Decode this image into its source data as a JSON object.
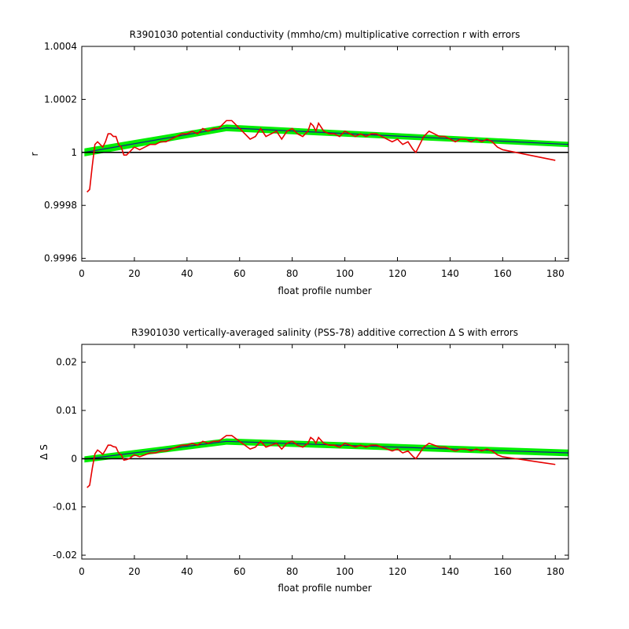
{
  "colors": {
    "band": "#00ee00",
    "fit": "#1a1a8c",
    "data": "#e60000",
    "axis": "#000000"
  },
  "chart_data": [
    {
      "type": "line",
      "title": "R3901030 potential conductivity (mmho/cm) multiplicative correction r with errors",
      "xlabel": "float profile number",
      "ylabel": "r",
      "xlim": [
        0,
        185
      ],
      "ylim": [
        0.99959,
        1.0004
      ],
      "x_ticks": [
        0,
        20,
        40,
        60,
        80,
        100,
        120,
        140,
        160,
        180
      ],
      "y_ticks": [
        0.9996,
        0.9998,
        1,
        1.0002,
        1.0004
      ],
      "y_tick_labels": [
        "0.9996",
        "0.9998",
        "1",
        "1.0002",
        "1.0004"
      ],
      "reference_line": 1,
      "series": [
        {
          "role": "fit_band",
          "x": [
            1,
            55,
            185
          ],
          "upper": [
            1.000015,
            1.000105,
            1.00004
          ],
          "lower": [
            0.999985,
            1.00008,
            1.00002
          ]
        },
        {
          "role": "fit",
          "x": [
            1,
            55,
            185
          ],
          "values": [
            1.0,
            1.000093,
            1.00003
          ]
        },
        {
          "role": "data",
          "x": [
            2,
            3,
            4,
            5,
            6,
            7,
            8,
            9,
            10,
            11,
            12,
            13,
            14,
            15,
            16,
            17,
            18,
            19,
            20,
            22,
            24,
            26,
            28,
            30,
            32,
            34,
            36,
            38,
            40,
            42,
            44,
            46,
            48,
            50,
            52,
            54,
            55,
            56,
            57,
            58,
            59,
            60,
            62,
            64,
            66,
            68,
            70,
            72,
            74,
            76,
            78,
            80,
            82,
            84,
            86,
            87,
            88,
            89,
            90,
            92,
            94,
            96,
            98,
            100,
            102,
            104,
            106,
            108,
            110,
            112,
            114,
            116,
            118,
            120,
            122,
            124,
            126,
            127,
            128,
            130,
            132,
            134,
            136,
            138,
            140,
            142,
            144,
            146,
            148,
            150,
            152,
            154,
            156,
            158,
            160,
            165,
            170,
            175,
            180
          ],
          "values": [
            0.99985,
            0.99986,
            0.99995,
            1.00003,
            1.00004,
            1.00003,
            1.00002,
            1.00004,
            1.00007,
            1.00007,
            1.00006,
            1.00006,
            1.00003,
            1.00002,
            0.99999,
            0.99999,
            1.0,
            1.00001,
            1.00002,
            1.00001,
            1.00002,
            1.00003,
            1.00003,
            1.00004,
            1.00004,
            1.00005,
            1.00006,
            1.00007,
            1.00007,
            1.00008,
            1.00007,
            1.00009,
            1.00008,
            1.00009,
            1.00009,
            1.00011,
            1.00012,
            1.00012,
            1.00012,
            1.00011,
            1.0001,
            1.00009,
            1.00007,
            1.00005,
            1.00006,
            1.00009,
            1.00006,
            1.00007,
            1.00008,
            1.00005,
            1.00008,
            1.00009,
            1.00007,
            1.00006,
            1.00008,
            1.00011,
            1.0001,
            1.00008,
            1.00011,
            1.00008,
            1.00007,
            1.00007,
            1.00006,
            1.00008,
            1.00007,
            1.00006,
            1.00007,
            1.00006,
            1.00007,
            1.00007,
            1.00006,
            1.00005,
            1.00004,
            1.00005,
            1.00003,
            1.00004,
            1.00001,
            1.0,
            1.00002,
            1.00006,
            1.00008,
            1.00007,
            1.00006,
            1.00006,
            1.00005,
            1.00004,
            1.00005,
            1.00005,
            1.00004,
            1.00005,
            1.00004,
            1.00005,
            1.00004,
            1.00002,
            1.00001,
            1.0,
            0.99999,
            0.99998,
            0.99997
          ]
        }
      ]
    },
    {
      "type": "line",
      "title": "R3901030 vertically-averaged salinity (PSS-78) additive correction Δ S with errors",
      "xlabel": "float profile number",
      "ylabel": "Δ S",
      "xlim": [
        0,
        185
      ],
      "ylim": [
        -0.0208,
        0.0237
      ],
      "x_ticks": [
        0,
        20,
        40,
        60,
        80,
        100,
        120,
        140,
        160,
        180
      ],
      "y_ticks": [
        -0.02,
        -0.01,
        0,
        0.01,
        0.02
      ],
      "y_tick_labels": [
        "-0.02",
        "-0.01",
        "0",
        "0.01",
        "0.02"
      ],
      "reference_line": 0,
      "series": [
        {
          "role": "fit_band",
          "x": [
            1,
            55,
            185
          ],
          "upper": [
            0.0005,
            0.0042,
            0.0019
          ],
          "lower": [
            -0.0008,
            0.0029,
            0.0005
          ]
        },
        {
          "role": "fit",
          "x": [
            1,
            55,
            185
          ],
          "values": [
            -0.0001,
            0.0036,
            0.0012
          ]
        },
        {
          "role": "data",
          "x": [
            2,
            3,
            4,
            5,
            6,
            7,
            8,
            9,
            10,
            11,
            12,
            13,
            14,
            15,
            16,
            17,
            18,
            19,
            20,
            22,
            24,
            26,
            28,
            30,
            32,
            34,
            36,
            38,
            40,
            42,
            44,
            46,
            48,
            50,
            52,
            54,
            55,
            56,
            57,
            58,
            59,
            60,
            62,
            64,
            66,
            68,
            70,
            72,
            74,
            76,
            78,
            80,
            82,
            84,
            86,
            87,
            88,
            89,
            90,
            92,
            94,
            96,
            98,
            100,
            102,
            104,
            106,
            108,
            110,
            112,
            114,
            116,
            118,
            120,
            122,
            124,
            126,
            127,
            128,
            130,
            132,
            134,
            136,
            138,
            140,
            142,
            144,
            146,
            148,
            150,
            152,
            154,
            156,
            158,
            160,
            165,
            170,
            175,
            180
          ],
          "values": [
            -0.006,
            -0.0055,
            -0.002,
            0.001,
            0.0018,
            0.0014,
            0.0009,
            0.0018,
            0.0028,
            0.0028,
            0.0025,
            0.0024,
            0.0012,
            0.0008,
            -0.0003,
            -0.0002,
            0.0,
            0.0004,
            0.0008,
            0.0004,
            0.0008,
            0.0012,
            0.0012,
            0.0016,
            0.0016,
            0.002,
            0.0024,
            0.0028,
            0.0028,
            0.0032,
            0.0028,
            0.0036,
            0.0032,
            0.0036,
            0.0036,
            0.0044,
            0.0048,
            0.0048,
            0.0048,
            0.0044,
            0.004,
            0.0036,
            0.0028,
            0.002,
            0.0024,
            0.0036,
            0.0024,
            0.0028,
            0.0032,
            0.002,
            0.0032,
            0.0036,
            0.0028,
            0.0024,
            0.0032,
            0.0044,
            0.004,
            0.0032,
            0.0044,
            0.0032,
            0.0028,
            0.0028,
            0.0024,
            0.0032,
            0.0028,
            0.0024,
            0.0028,
            0.0024,
            0.0028,
            0.0028,
            0.0024,
            0.002,
            0.0016,
            0.002,
            0.0012,
            0.0016,
            0.0004,
            0.0,
            0.0008,
            0.0024,
            0.0032,
            0.0028,
            0.0024,
            0.0024,
            0.002,
            0.0016,
            0.002,
            0.002,
            0.0016,
            0.002,
            0.0016,
            0.002,
            0.0016,
            0.0008,
            0.0004,
            0.0,
            -0.0004,
            -0.0008,
            -0.0012
          ]
        }
      ]
    }
  ]
}
